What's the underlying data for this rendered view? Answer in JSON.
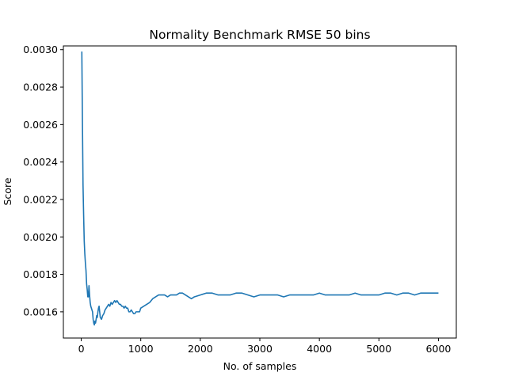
{
  "chart_data": {
    "type": "line",
    "title": "Normality Benchmark RMSE 50 bins",
    "xlabel": "No. of samples",
    "ylabel": "Score",
    "xlim": [
      -300,
      6300
    ],
    "ylim": [
      0.00146,
      0.00302
    ],
    "xticks": [
      0,
      1000,
      2000,
      3000,
      4000,
      5000,
      6000
    ],
    "xtick_labels": [
      "0",
      "1000",
      "2000",
      "3000",
      "4000",
      "5000",
      "6000"
    ],
    "yticks": [
      0.0016,
      0.0018,
      0.002,
      0.0022,
      0.0024,
      0.0026,
      0.0028,
      0.003
    ],
    "ytick_labels": [
      "0.0016",
      "0.0018",
      "0.0020",
      "0.0022",
      "0.0024",
      "0.0026",
      "0.0028",
      "0.0030"
    ],
    "grid": false,
    "line_color": "#1f77b4",
    "series": [
      {
        "x": [
          10,
          20,
          30,
          40,
          50,
          60,
          70,
          80,
          90,
          100,
          110,
          120,
          130,
          140,
          150,
          160,
          170,
          180,
          190,
          200,
          210,
          220,
          230,
          240,
          250,
          260,
          270,
          280,
          290,
          300,
          320,
          340,
          360,
          380,
          400,
          420,
          440,
          460,
          480,
          500,
          520,
          540,
          560,
          580,
          600,
          620,
          640,
          660,
          680,
          700,
          720,
          740,
          760,
          780,
          800,
          820,
          840,
          860,
          880,
          900,
          920,
          940,
          960,
          980,
          1000,
          1050,
          1100,
          1150,
          1200,
          1250,
          1300,
          1350,
          1400,
          1450,
          1500,
          1550,
          1600,
          1650,
          1700,
          1750,
          1800,
          1850,
          1900,
          2000,
          2100,
          2200,
          2300,
          2400,
          2500,
          2600,
          2700,
          2800,
          2900,
          3000,
          3100,
          3200,
          3300,
          3400,
          3500,
          3600,
          3700,
          3800,
          3900,
          4000,
          4100,
          4200,
          4300,
          4400,
          4500,
          4600,
          4700,
          4800,
          4900,
          5000,
          5100,
          5200,
          5300,
          5400,
          5500,
          5600,
          5700,
          5800,
          5900,
          6000
        ],
        "y": [
          0.00299,
          0.00262,
          0.00228,
          0.00212,
          0.00198,
          0.00191,
          0.00186,
          0.00182,
          0.00175,
          0.00172,
          0.00168,
          0.00168,
          0.00174,
          0.00169,
          0.00165,
          0.00163,
          0.00162,
          0.00161,
          0.0016,
          0.00156,
          0.00154,
          0.00153,
          0.00155,
          0.00154,
          0.00156,
          0.00158,
          0.00157,
          0.0016,
          0.00162,
          0.00163,
          0.00157,
          0.00156,
          0.00158,
          0.00159,
          0.00161,
          0.00162,
          0.00163,
          0.00164,
          0.00163,
          0.00165,
          0.00164,
          0.00165,
          0.00166,
          0.00165,
          0.00166,
          0.00165,
          0.00164,
          0.00164,
          0.00163,
          0.00163,
          0.00162,
          0.00163,
          0.00162,
          0.00162,
          0.0016,
          0.0016,
          0.00161,
          0.0016,
          0.00159,
          0.00159,
          0.0016,
          0.0016,
          0.0016,
          0.0016,
          0.00162,
          0.00163,
          0.00164,
          0.00165,
          0.00167,
          0.00168,
          0.00169,
          0.00169,
          0.00169,
          0.00168,
          0.00169,
          0.00169,
          0.00169,
          0.0017,
          0.0017,
          0.00169,
          0.00168,
          0.00167,
          0.00168,
          0.00169,
          0.0017,
          0.0017,
          0.00169,
          0.00169,
          0.00169,
          0.0017,
          0.0017,
          0.00169,
          0.00168,
          0.00169,
          0.00169,
          0.00169,
          0.00169,
          0.00168,
          0.00169,
          0.00169,
          0.00169,
          0.00169,
          0.00169,
          0.0017,
          0.00169,
          0.00169,
          0.00169,
          0.00169,
          0.00169,
          0.0017,
          0.00169,
          0.00169,
          0.00169,
          0.00169,
          0.0017,
          0.0017,
          0.00169,
          0.0017,
          0.0017,
          0.00169,
          0.0017,
          0.0017,
          0.0017,
          0.0017
        ]
      }
    ]
  }
}
